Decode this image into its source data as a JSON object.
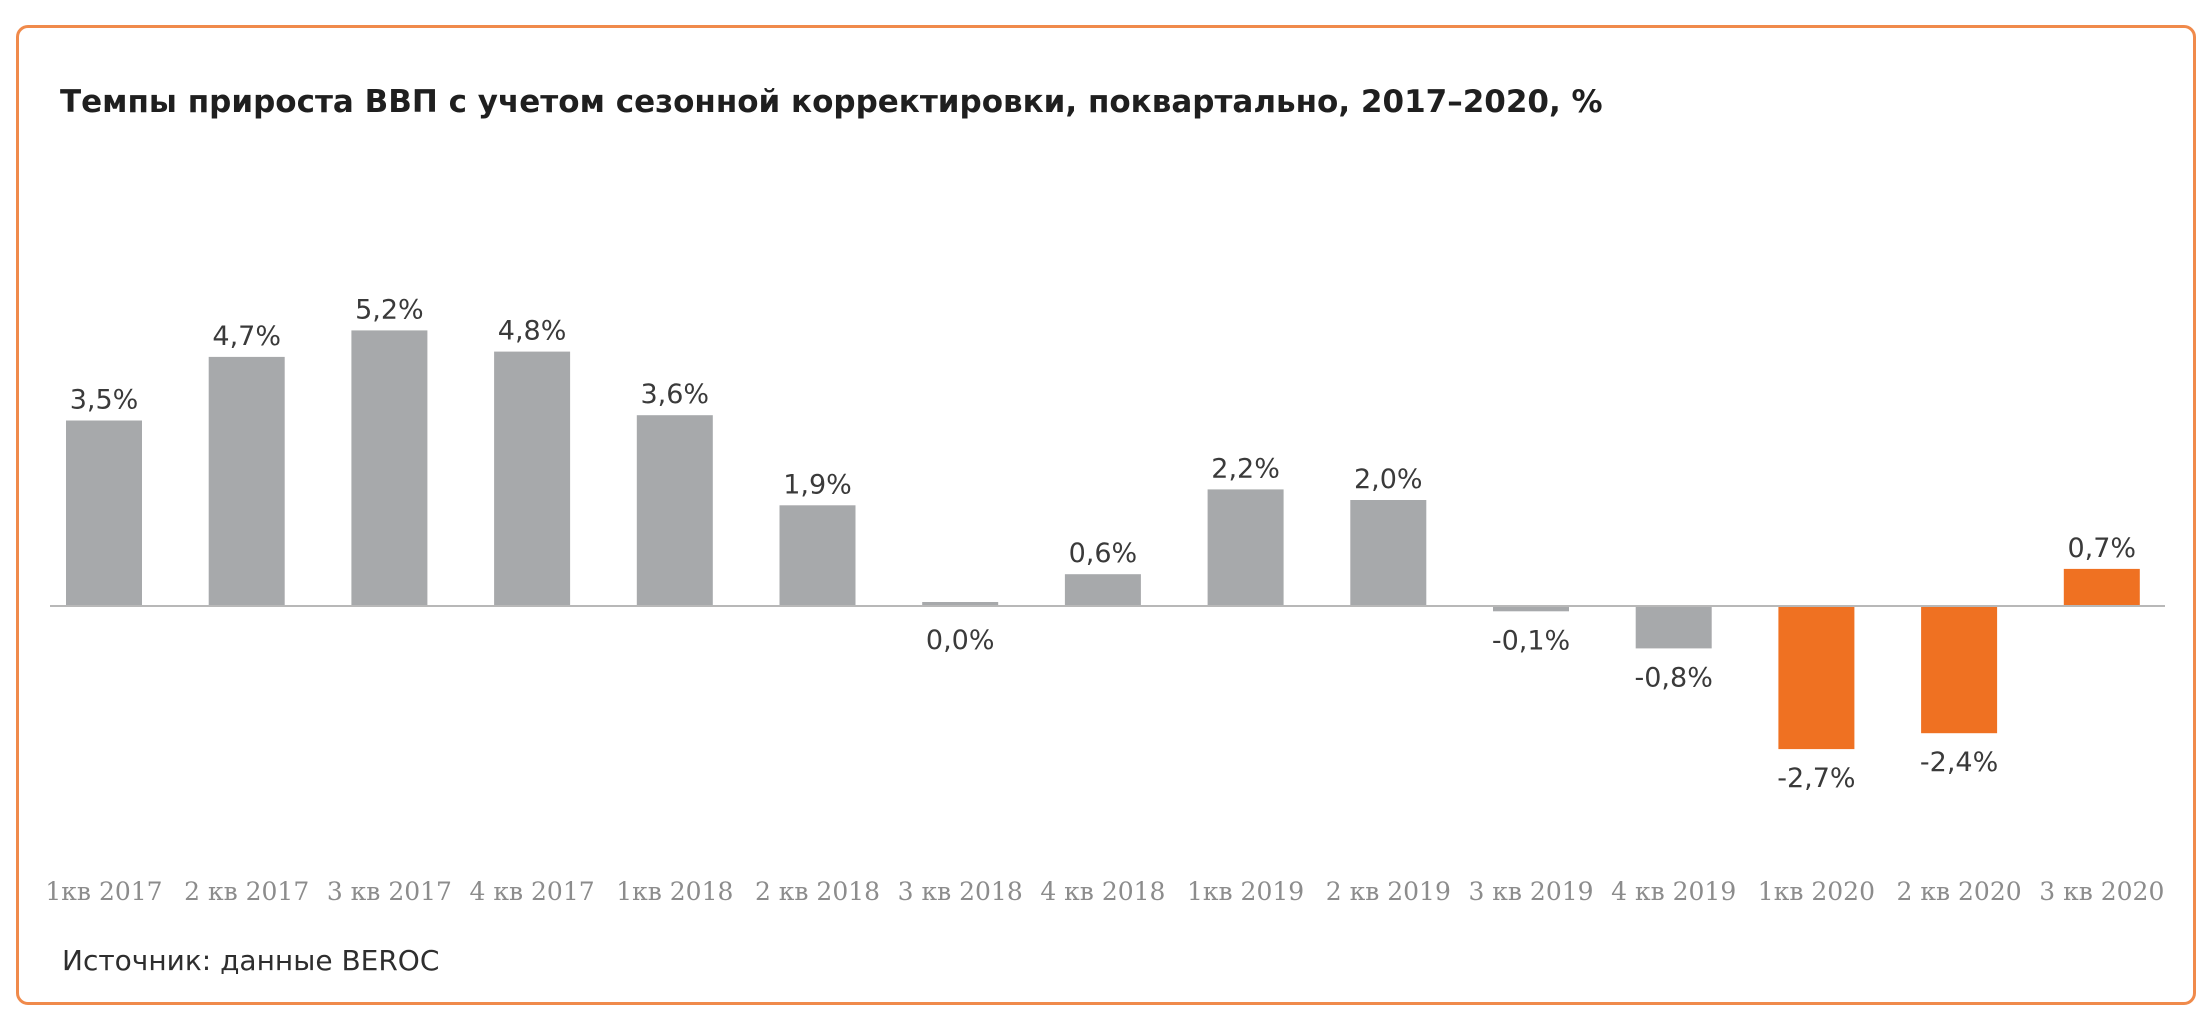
{
  "chart_data": {
    "type": "bar",
    "title": "Темпы прироста ВВП с учетом сезонной корректировки, поквартально, 2017–2020, %",
    "categories": [
      "1кв 2017",
      "2 кв 2017",
      "3 кв 2017",
      "4 кв 2017",
      "1кв 2018",
      "2 кв 2018",
      "3 кв 2018",
      "4 кв 2018",
      "1кв 2019",
      "2 кв 2019",
      "3 кв 2019",
      "4 кв 2019",
      "1кв 2020",
      "2 кв 2020",
      "3 кв 2020"
    ],
    "values": [
      3.5,
      4.7,
      5.2,
      4.8,
      3.6,
      1.9,
      0.0,
      0.6,
      2.2,
      2.0,
      -0.1,
      -0.8,
      -2.7,
      -2.4,
      0.7
    ],
    "data_labels": [
      "3,5%",
      "4,7%",
      "5,2%",
      "4,8%",
      "3,6%",
      "1,9%",
      "0,0%",
      "0,6%",
      "2,2%",
      "2,0%",
      "-0,1%",
      "-0,8%",
      "-2,7%",
      "-2,4%",
      "0,7%"
    ],
    "highlighted": [
      false,
      false,
      false,
      false,
      false,
      false,
      false,
      false,
      false,
      false,
      false,
      false,
      true,
      true,
      true
    ],
    "colors": {
      "default": "#a7a9ab",
      "highlight": "#ef7122",
      "axis": "#b8b8b8"
    },
    "xlabel": "",
    "ylabel": "",
    "ylim": [
      -3,
      5.5
    ],
    "grid": false,
    "legend": "none"
  },
  "source": "Источник: данные BEROC"
}
